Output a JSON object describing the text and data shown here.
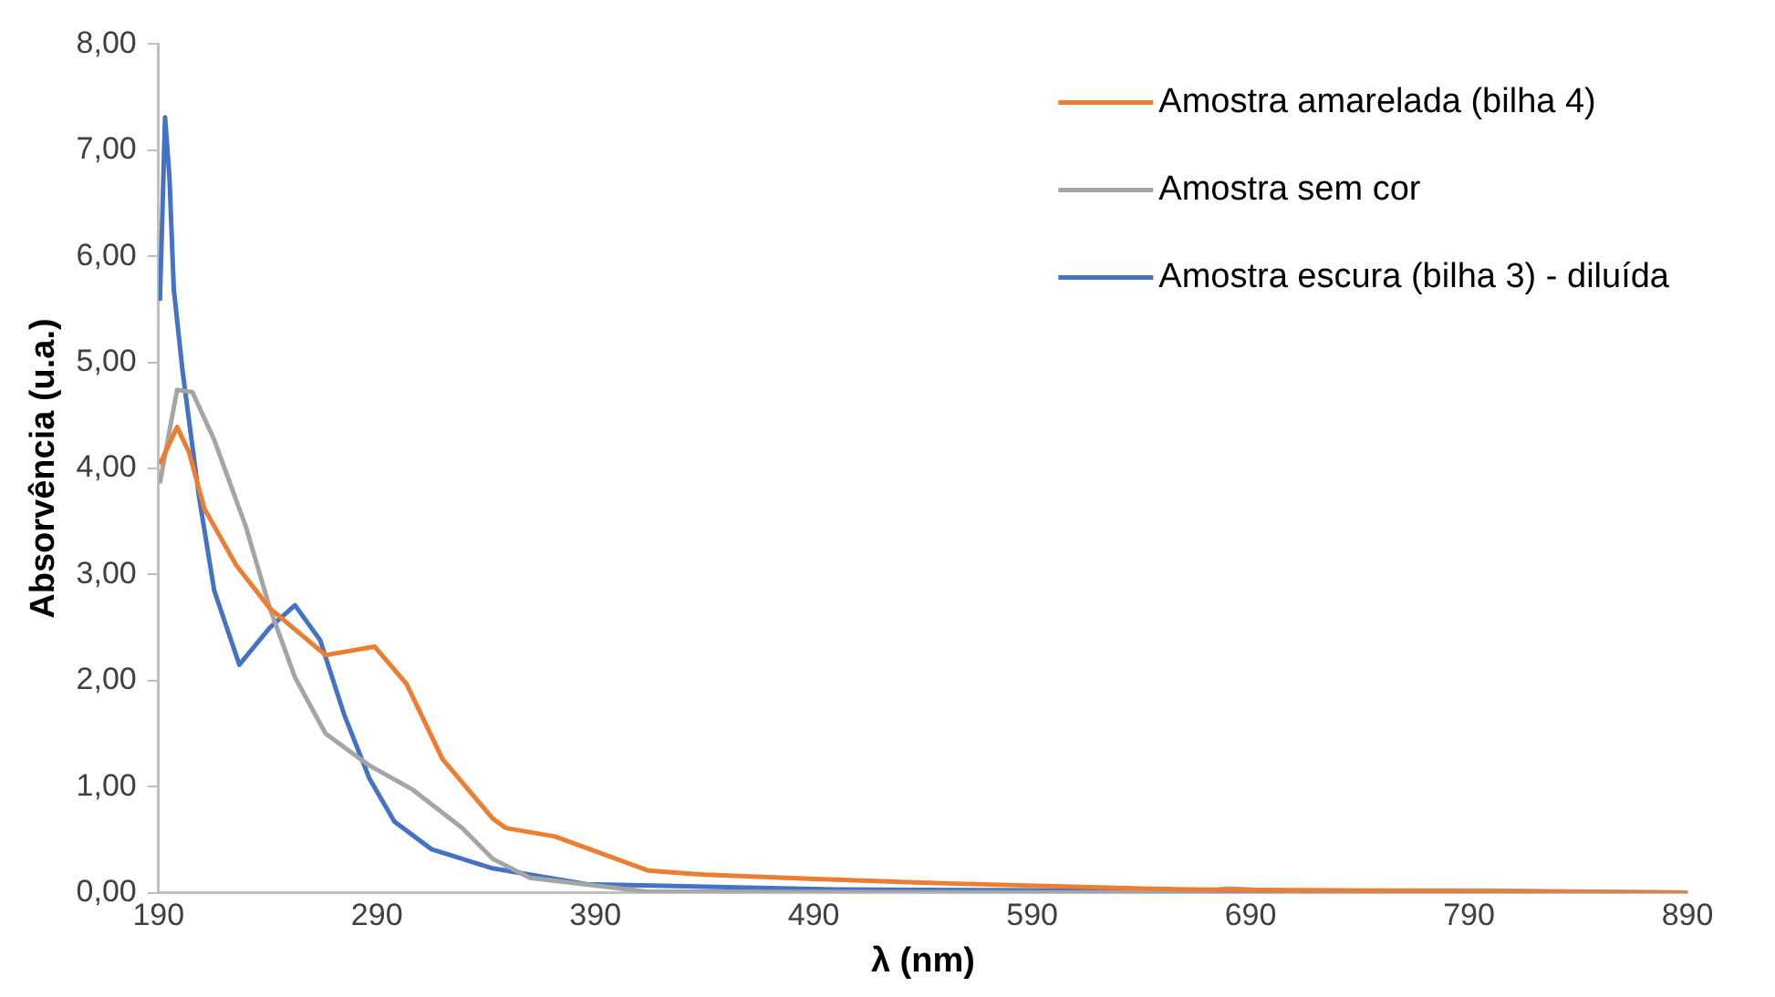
{
  "chart_data": {
    "type": "line",
    "xlabel": "λ (nm)",
    "ylabel": "Absorvência (u.a.)",
    "xlim": [
      190,
      890
    ],
    "ylim": [
      0,
      8
    ],
    "xticks": [
      190,
      290,
      390,
      490,
      590,
      690,
      790,
      890
    ],
    "yticks": [
      {
        "value": 0,
        "label": "0,00"
      },
      {
        "value": 1,
        "label": "1,00"
      },
      {
        "value": 2,
        "label": "2,00"
      },
      {
        "value": 3,
        "label": "3,00"
      },
      {
        "value": 4,
        "label": "4,00"
      },
      {
        "value": 5,
        "label": "5,00"
      },
      {
        "value": 6,
        "label": "6,00"
      },
      {
        "value": 7,
        "label": "7,00"
      },
      {
        "value": 8,
        "label": "8,00"
      }
    ],
    "grid": false,
    "legend": "top right",
    "marker": "none",
    "line_style": "solid",
    "series": [
      {
        "name": "Amostra amarelada (bilha 4)",
        "color": "#ed7d31",
        "x": [
          190.6,
          198.5,
          204,
          211,
          225.5,
          241,
          266.5,
          289,
          303.5,
          320,
          343,
          349,
          371.5,
          391.5,
          414,
          440,
          491,
          548,
          660,
          890
        ],
        "values": [
          4.04,
          4.39,
          4.15,
          3.62,
          3.09,
          2.68,
          2.24,
          2.32,
          1.97,
          1.26,
          0.7,
          0.61,
          0.53,
          0.38,
          0.21,
          0.17,
          0.13,
          0.09,
          0.03,
          0
        ]
      },
      {
        "name": "Amostra sem cor",
        "color": "#a5a5a5",
        "x": [
          190.6,
          198.5,
          205.5,
          215.5,
          230,
          241,
          252.5,
          266.5,
          286.5,
          306.5,
          329,
          343,
          360,
          414,
          660,
          680,
          700,
          800,
          890
        ],
        "values": [
          3.86,
          4.74,
          4.72,
          4.27,
          3.45,
          2.68,
          2.03,
          1.5,
          1.2,
          0.97,
          0.61,
          0.32,
          0.14,
          0.01,
          0,
          0.04,
          0.02,
          0.02,
          0
        ]
      },
      {
        "name": "Amostra escura (bilha 3) - diluída",
        "color": "#4472c4",
        "x": [
          190.6,
          191.5,
          193,
          195,
          197,
          201,
          208.5,
          215.5,
          227,
          241,
          252.5,
          264,
          275,
          286.5,
          298,
          315,
          343,
          386,
          500,
          890
        ],
        "values": [
          5.58,
          6.2,
          7.31,
          6.75,
          5.69,
          4.92,
          3.74,
          2.85,
          2.15,
          2.5,
          2.71,
          2.38,
          1.68,
          1.08,
          0.67,
          0.41,
          0.23,
          0.08,
          0.03,
          0
        ]
      }
    ]
  }
}
